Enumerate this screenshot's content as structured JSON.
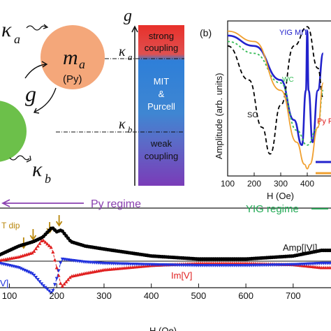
{
  "schematic": {
    "kappa_a_label": "κ",
    "kappa_a_sub": "a",
    "kappa_b_label": "κ",
    "kappa_b_sub": "b",
    "coupling_label": "g",
    "magnon_a_label": "m",
    "magnon_a_sub": "a",
    "magnon_a_material": "(Py)",
    "colors": {
      "py_sphere": "#F4A77A",
      "yig_sphere": "#6CC04A"
    }
  },
  "scale_bar": {
    "axis_label": "g",
    "top_label": "strong coupling",
    "top_line1": "strong",
    "top_line2": "coupling",
    "mid_line1": "MIT",
    "mid_line2": "&",
    "mid_line3": "Purcell",
    "bottom_line1": "weak",
    "bottom_line2": "coupling",
    "kappa_a_marker": "κ",
    "kappa_a_marker_sub": "a",
    "kappa_b_marker": "κ",
    "kappa_b_marker_sub": "b"
  },
  "panel_b": {
    "label": "(b)",
    "ylabel": "Amplitude (arb. units)",
    "xlabel": "H (Oe)",
    "xticks": [
      "100",
      "200",
      "300",
      "400"
    ],
    "annotations": {
      "yig_mit": "YIG MIT",
      "wc": "WC",
      "sc": "SC",
      "py": "Py F"
    },
    "chart_data": {
      "type": "line",
      "xlabel": "H (Oe)",
      "ylabel": "Amplitude (arb. units)",
      "xlim": [
        100,
        460
      ],
      "series": [
        {
          "name": "YIG MIT",
          "color": "#2222CC",
          "x": [
            100,
            200,
            300,
            350,
            380,
            395,
            400,
            405,
            420,
            440,
            460
          ],
          "y": [
            0.92,
            0.85,
            0.62,
            0.35,
            0.18,
            0.55,
            0.95,
            0.55,
            0.2,
            0.55,
            0.8
          ]
        },
        {
          "name": "SC",
          "color": "#000000",
          "x": [
            100,
            180,
            230,
            260,
            300,
            350,
            400,
            440,
            460
          ],
          "y": [
            0.85,
            0.62,
            0.3,
            0.12,
            0.45,
            0.85,
            0.98,
            0.7,
            0.5
          ]
        },
        {
          "name": "WC",
          "color": "#33BB55",
          "x": [
            100,
            200,
            300,
            360,
            400,
            440,
            460
          ],
          "y": [
            0.88,
            0.8,
            0.6,
            0.28,
            0.18,
            0.3,
            0.55
          ]
        },
        {
          "name": "Py F",
          "color": "#F0A030",
          "x": [
            100,
            200,
            300,
            360,
            390,
            400,
            410,
            440,
            460
          ],
          "y": [
            0.95,
            0.88,
            0.55,
            0.2,
            0.05,
            0.02,
            0.05,
            0.3,
            0.6
          ]
        }
      ]
    }
  },
  "panel_c": {
    "py_regime": "Py regime",
    "yig_regime": "YIG regime",
    "mit_dip": "T dip",
    "amp_label": "Amp[|V|]",
    "im_label": "Im[V]",
    "re_label": "V]",
    "xlabel": "H (Oe)",
    "xticks": [
      "100",
      "200",
      "300",
      "400",
      "500",
      "600",
      "700"
    ],
    "chart_data": {
      "type": "scatter",
      "xlabel": "H (Oe)",
      "xlim": [
        80,
        780
      ],
      "series": [
        {
          "name": "Amp[|V|]",
          "color": "#000000",
          "x": [
            80,
            120,
            150,
            170,
            190,
            200,
            210,
            230,
            260,
            300,
            400,
            500,
            600,
            700,
            760
          ],
          "y": [
            0.15,
            0.35,
            0.45,
            0.55,
            0.78,
            0.68,
            0.72,
            0.45,
            0.35,
            0.28,
            0.12,
            0.05,
            0.05,
            0.12,
            0.25
          ]
        },
        {
          "name": "Im[V]",
          "color": "#E02020",
          "x": [
            80,
            120,
            150,
            170,
            190,
            200,
            210,
            230,
            260,
            300,
            400,
            500,
            600,
            700,
            760
          ],
          "y": [
            0.02,
            0.1,
            0.2,
            0.5,
            0.3,
            -0.15,
            -0.6,
            -0.35,
            -0.28,
            -0.2,
            -0.1,
            -0.05,
            -0.05,
            -0.08,
            -0.15
          ]
        },
        {
          "name": "Re[V]",
          "color": "#2233DD",
          "x": [
            80,
            120,
            150,
            170,
            190,
            200,
            210,
            230,
            260,
            300,
            400,
            500,
            600,
            700,
            760
          ],
          "y": [
            -0.05,
            -0.15,
            -0.3,
            -0.55,
            -0.75,
            -0.4,
            0.05,
            0.02,
            -0.02,
            -0.05,
            -0.08,
            -0.1,
            -0.1,
            -0.08,
            -0.05
          ]
        }
      ]
    }
  }
}
